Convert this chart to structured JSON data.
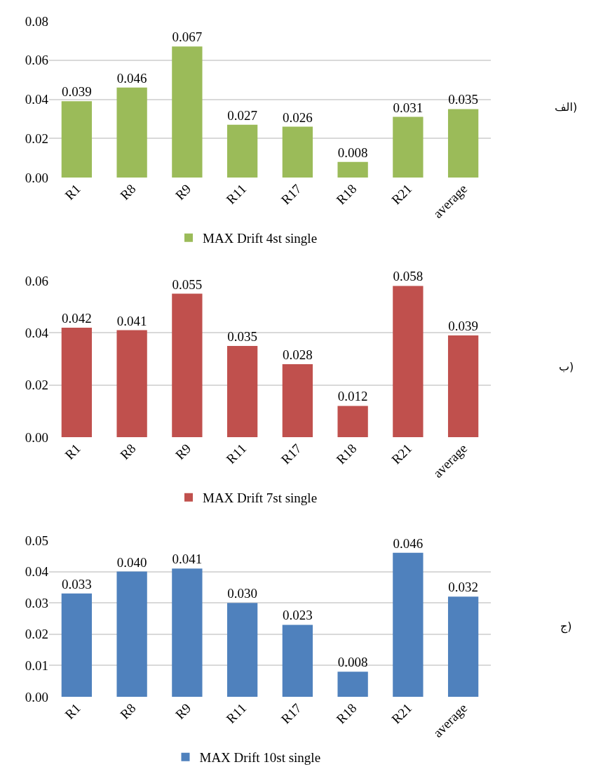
{
  "chart_data": [
    {
      "type": "bar",
      "categories": [
        "R1",
        "R8",
        "R9",
        "R11",
        "R17",
        "R18",
        "R21",
        "average"
      ],
      "series": [
        {
          "name": "MAX Drift 4st single",
          "color": "#9bbb59",
          "values": [
            0.039,
            0.046,
            0.067,
            0.027,
            0.026,
            0.008,
            0.031,
            0.035
          ],
          "value_labels": [
            "0.039",
            "0.046",
            "0.067",
            "0.027",
            "0.026",
            "0.008",
            "0.031",
            "0.035"
          ]
        }
      ],
      "ylim": [
        0,
        0.08
      ],
      "yticks": [
        {
          "value": 0,
          "label": "0.00"
        },
        {
          "value": 0.02,
          "label": "0.02"
        },
        {
          "value": 0.04,
          "label": "0.04"
        },
        {
          "value": 0.06,
          "label": "0.06"
        },
        {
          "value": 0.08,
          "label": "0.08"
        }
      ],
      "grid": "y",
      "legend": "bottom",
      "annotations": [
        "الف)"
      ]
    },
    {
      "type": "bar",
      "categories": [
        "R1",
        "R8",
        "R9",
        "R11",
        "R17",
        "R18",
        "R21",
        "average"
      ],
      "series": [
        {
          "name": "MAX Drift 7st single",
          "color": "#c0504d",
          "values": [
            0.042,
            0.041,
            0.055,
            0.035,
            0.028,
            0.012,
            0.058,
            0.039
          ],
          "value_labels": [
            "0.042",
            "0.041",
            "0.055",
            "0.035",
            "0.028",
            "0.012",
            "0.058",
            "0.039"
          ]
        }
      ],
      "ylim": [
        0,
        0.06
      ],
      "yticks": [
        {
          "value": 0,
          "label": "0.00"
        },
        {
          "value": 0.02,
          "label": "0.02"
        },
        {
          "value": 0.04,
          "label": "0.04"
        },
        {
          "value": 0.06,
          "label": "0.06"
        }
      ],
      "grid": "y",
      "legend": "bottom",
      "annotations": [
        "ب)"
      ]
    },
    {
      "type": "bar",
      "categories": [
        "R1",
        "R8",
        "R9",
        "R11",
        "R17",
        "R18",
        "R21",
        "average"
      ],
      "series": [
        {
          "name": "MAX Drift 10st single",
          "color": "#4f81bd",
          "values": [
            0.033,
            0.04,
            0.041,
            0.03,
            0.023,
            0.008,
            0.046,
            0.032
          ],
          "value_labels": [
            "0.033",
            "0.040",
            "0.041",
            "0.030",
            "0.023",
            "0.008",
            "0.046",
            "0.032"
          ]
        }
      ],
      "ylim": [
        0,
        0.05
      ],
      "yticks": [
        {
          "value": 0,
          "label": "0.00"
        },
        {
          "value": 0.01,
          "label": "0.01"
        },
        {
          "value": 0.02,
          "label": "0.02"
        },
        {
          "value": 0.03,
          "label": "0.03"
        },
        {
          "value": 0.04,
          "label": "0.04"
        },
        {
          "value": 0.05,
          "label": "0.05"
        }
      ],
      "grid": "y",
      "legend": "bottom",
      "annotations": [
        "ج)"
      ]
    }
  ]
}
